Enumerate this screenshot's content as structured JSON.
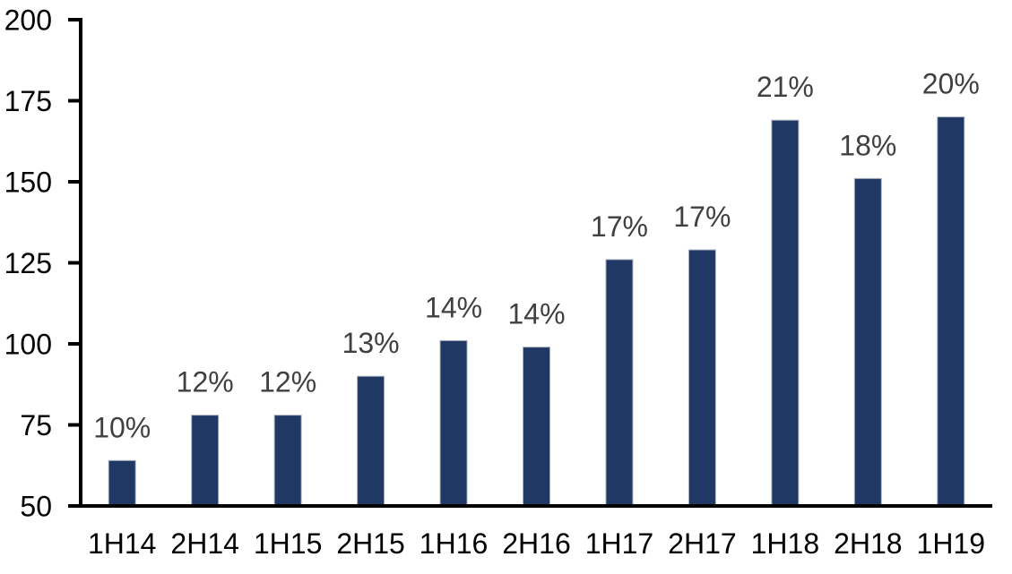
{
  "chart_data": {
    "type": "bar",
    "title": "",
    "xlabel": "",
    "ylabel": "",
    "categories": [
      "1H14",
      "2H14",
      "1H15",
      "2H15",
      "1H16",
      "2H16",
      "1H17",
      "2H17",
      "1H18",
      "2H18",
      "1H19"
    ],
    "values": [
      64,
      78,
      78,
      90,
      101,
      99,
      126,
      129,
      169,
      151,
      170
    ],
    "bar_labels": [
      "10%",
      "12%",
      "12%",
      "13%",
      "14%",
      "14%",
      "17%",
      "17%",
      "21%",
      "18%",
      "20%"
    ],
    "ylim": [
      50,
      200
    ],
    "yticks": [
      50,
      75,
      100,
      125,
      150,
      175,
      200
    ],
    "grid": false,
    "legend": false,
    "colors": {
      "bar": "#1F3864",
      "bar_border": "#A9B1BF",
      "value_label": "#404040",
      "axis_text": "#000000",
      "axis_line": "#000000",
      "background": "#FFFFFF"
    }
  }
}
